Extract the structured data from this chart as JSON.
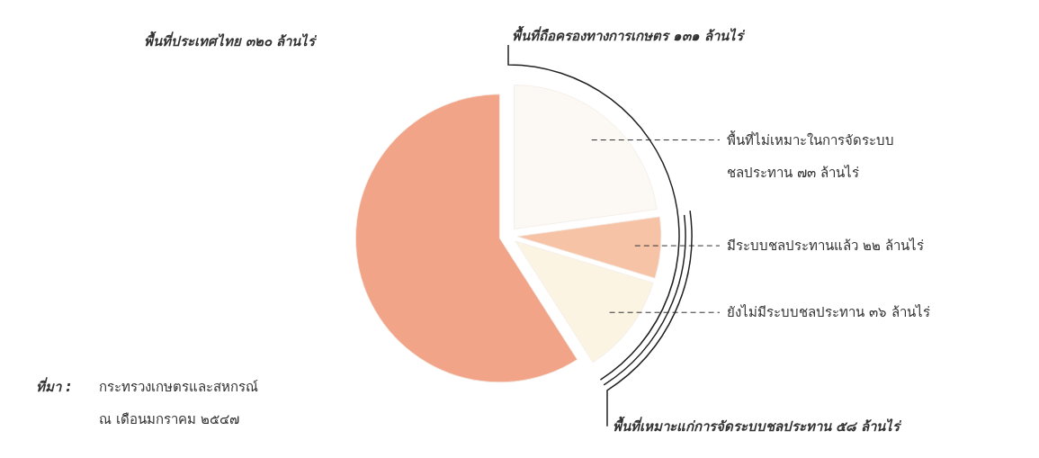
{
  "chart_data": {
    "type": "pie",
    "title": "พื้นที่ประเทศไทย ๓๒๐ ล้านไร่",
    "categories": [
      "พื้นที่ไม่เหมาะในการจัดระบบชลประทาน",
      "มีระบบชลประทานแล้ว",
      "ยังไม่มีระบบชลประทาน",
      null
    ],
    "values": [
      73,
      22,
      36,
      189
    ],
    "value_labels": [
      "๗๓ ล้านไร่",
      "๒๒ ล้านไร่",
      "๓๖ ล้านไร่",
      null
    ],
    "colors": [
      "#fcf8f4",
      "#f7c3a6",
      "#fcf4e3",
      "#f2a488"
    ],
    "annotations": [
      "พื้นที่ถือครองทางการเกษตร ๑๓๑ ล้านไร่",
      "พื้นที่เหมาะแก่การจัดระบบชลประทาน ๕๘ ล้านไร่",
      "ที่มา :",
      "กระทรวงเกษตรและสหกรณ์",
      "ณ เดือนมกราคม ๒๕๔๗"
    ],
    "legend": false
  }
}
